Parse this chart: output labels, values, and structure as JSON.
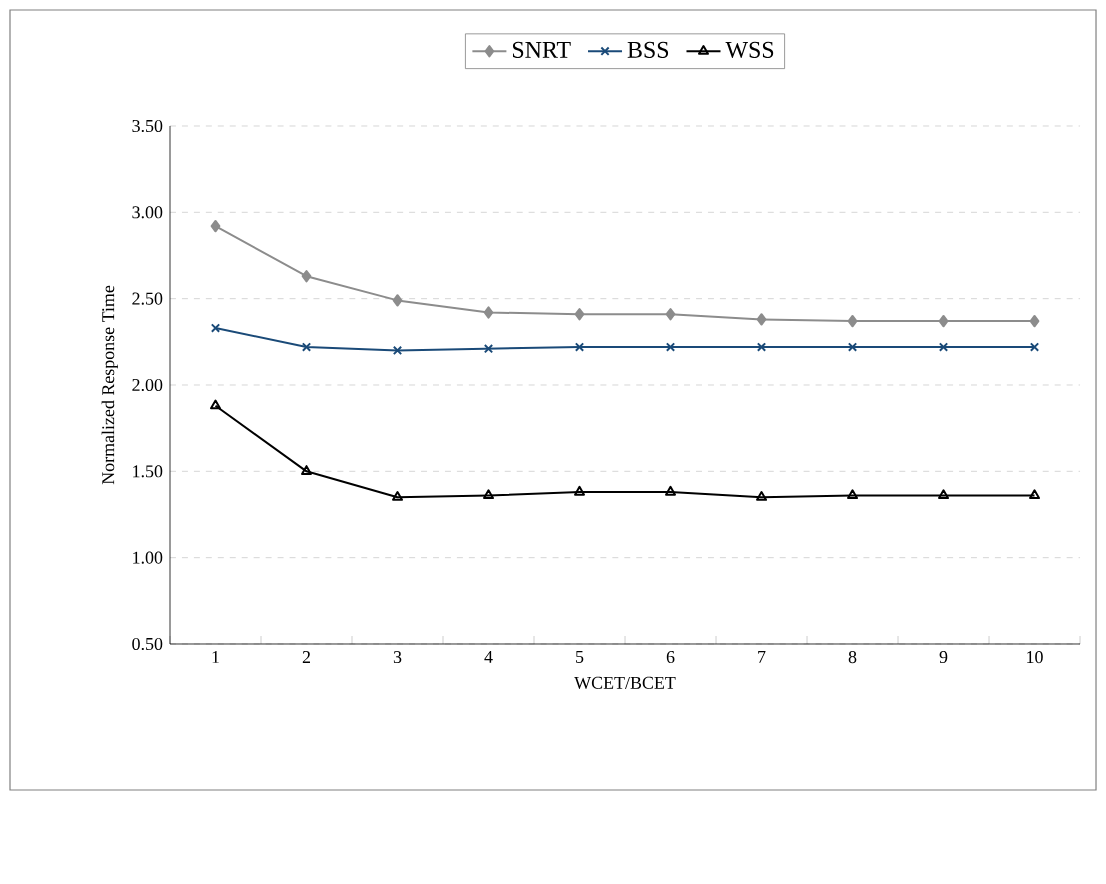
{
  "chart_data": {
    "type": "line",
    "xlabel": "WCET/BCET",
    "ylabel": "Normalized Response Time",
    "categories": [
      "1",
      "2",
      "3",
      "4",
      "5",
      "6",
      "7",
      "8",
      "9",
      "10"
    ],
    "series": [
      {
        "name": "SNRT",
        "color": "#8c8c8c",
        "marker": "diamond",
        "values": [
          2.92,
          2.63,
          2.49,
          2.42,
          2.41,
          2.41,
          2.38,
          2.37,
          2.37,
          2.37
        ]
      },
      {
        "name": "BSS",
        "color": "#1a4a78",
        "marker": "cross",
        "values": [
          2.33,
          2.22,
          2.2,
          2.21,
          2.22,
          2.22,
          2.22,
          2.22,
          2.22,
          2.22
        ]
      },
      {
        "name": "WSS",
        "color": "#000000",
        "marker": "triangle",
        "values": [
          1.88,
          1.5,
          1.35,
          1.36,
          1.38,
          1.38,
          1.35,
          1.36,
          1.36,
          1.36
        ]
      }
    ],
    "ylim": [
      0.5,
      3.5
    ],
    "yticks": [
      {
        "value": 0.5,
        "label": "0.50"
      },
      {
        "value": 1.0,
        "label": "1.00"
      },
      {
        "value": 1.5,
        "label": "1.50"
      },
      {
        "value": 2.0,
        "label": "2.00"
      },
      {
        "value": 2.5,
        "label": "2.50"
      },
      {
        "value": 3.0,
        "label": "3.00"
      },
      {
        "value": 3.5,
        "label": "3.50"
      }
    ],
    "grid": "y",
    "legend": "top",
    "line_style": "solid"
  }
}
